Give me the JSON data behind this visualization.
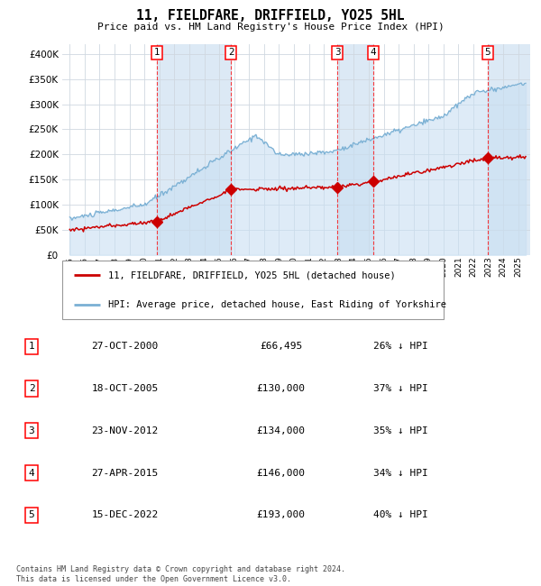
{
  "title": "11, FIELDFARE, DRIFFIELD, YO25 5HL",
  "subtitle": "Price paid vs. HM Land Registry's House Price Index (HPI)",
  "legend_line1": "11, FIELDFARE, DRIFFIELD, YO25 5HL (detached house)",
  "legend_line2": "HPI: Average price, detached house, East Riding of Yorkshire",
  "footer_line1": "Contains HM Land Registry data © Crown copyright and database right 2024.",
  "footer_line2": "This data is licensed under the Open Government Licence v3.0.",
  "hpi_fill_color": "#c8dff2",
  "hpi_line_color": "#7ab0d4",
  "price_color": "#cc0000",
  "chart_bg_color": "#dce9f5",
  "ylim": [
    0,
    420000
  ],
  "yticks": [
    0,
    50000,
    100000,
    150000,
    200000,
    250000,
    300000,
    350000,
    400000
  ],
  "xlim_start": 1994.5,
  "xlim_end": 2025.8,
  "sales": [
    {
      "num": 1,
      "date": "27-OCT-2000",
      "x": 2000.82,
      "price": 66495,
      "pct": "26%"
    },
    {
      "num": 2,
      "date": "18-OCT-2005",
      "x": 2005.79,
      "price": 130000,
      "pct": "37%"
    },
    {
      "num": 3,
      "date": "23-NOV-2012",
      "x": 2012.9,
      "price": 134000,
      "pct": "35%"
    },
    {
      "num": 4,
      "date": "27-APR-2015",
      "x": 2015.32,
      "price": 146000,
      "pct": "34%"
    },
    {
      "num": 5,
      "date": "15-DEC-2022",
      "x": 2022.96,
      "price": 193000,
      "pct": "40%"
    }
  ],
  "table_rows": [
    {
      "num": 1,
      "date": "27-OCT-2000",
      "price": "£66,495",
      "pct": "26% ↓ HPI"
    },
    {
      "num": 2,
      "date": "18-OCT-2005",
      "price": "£130,000",
      "pct": "37% ↓ HPI"
    },
    {
      "num": 3,
      "date": "23-NOV-2012",
      "price": "£134,000",
      "pct": "35% ↓ HPI"
    },
    {
      "num": 4,
      "date": "27-APR-2015",
      "price": "£146,000",
      "pct": "34% ↓ HPI"
    },
    {
      "num": 5,
      "date": "15-DEC-2022",
      "price": "£193,000",
      "pct": "40% ↓ HPI"
    }
  ]
}
